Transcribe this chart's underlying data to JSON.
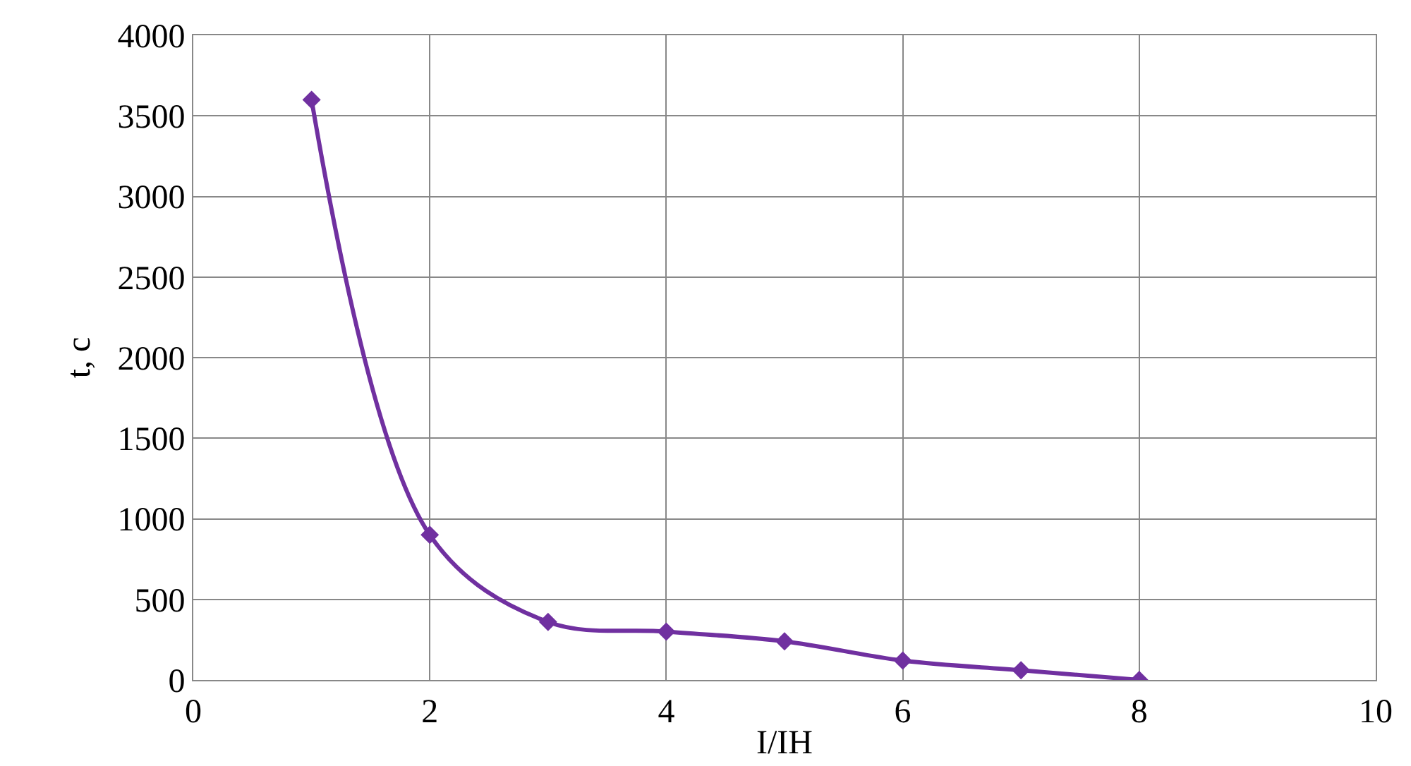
{
  "chart_data": {
    "type": "line",
    "xlabel": "I/IH",
    "ylabel": "t, c",
    "x": [
      1,
      2,
      3,
      4,
      5,
      6,
      7,
      8
    ],
    "series": [
      {
        "color": "#7030a0",
        "values": [
          3600,
          900,
          360,
          300,
          240,
          120,
          60,
          0
        ]
      }
    ],
    "xlim": [
      0,
      10
    ],
    "xticks": [
      0,
      2,
      4,
      6,
      8,
      10
    ],
    "ylim": [
      0,
      4000
    ],
    "yticks": [
      0,
      500,
      1000,
      1500,
      2000,
      2500,
      3000,
      3500,
      4000
    ],
    "grid": true,
    "marker": "diamond",
    "line_style": "solid"
  }
}
